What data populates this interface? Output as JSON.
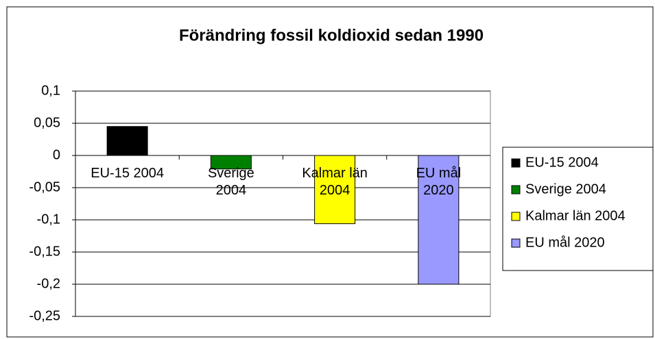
{
  "chart_data": {
    "type": "bar",
    "title": "Förändring fossil koldioxid sedan 1990",
    "categories": [
      "EU-15 2004",
      "Sverige\n2004",
      "Kalmar län\n2004",
      "EU mål\n2020"
    ],
    "legend_labels": [
      "EU-15 2004",
      "Sverige 2004",
      "Kalmar län 2004",
      "EU mål 2020"
    ],
    "values": [
      0.045,
      -0.021,
      -0.106,
      -0.2
    ],
    "colors": [
      "#000000",
      "#008000",
      "#ffff00",
      "#9999ff"
    ],
    "ylim": [
      -0.25,
      0.1
    ],
    "yticks": [
      {
        "value": -0.25,
        "label": "-0,25"
      },
      {
        "value": -0.2,
        "label": "-0,2"
      },
      {
        "value": -0.15,
        "label": "-0,15"
      },
      {
        "value": -0.1,
        "label": "-0,1"
      },
      {
        "value": -0.05,
        "label": "-0,05"
      },
      0,
      {
        "value": 0.05,
        "label": "0,05"
      },
      {
        "value": 0.1,
        "label": "0,1"
      }
    ],
    "grid": true,
    "legend": "right"
  }
}
